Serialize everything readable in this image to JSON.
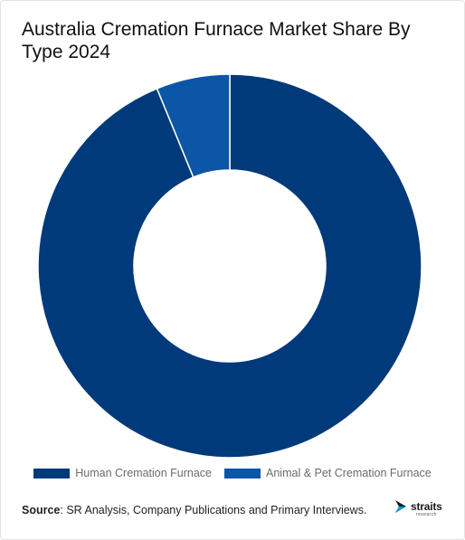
{
  "title": "Australia Cremation Furnace Market Share By Type 2024",
  "source_label": "Source",
  "source_text": ": SR Analysis, Company Publications and Primary Interviews.",
  "logo": {
    "word": "straits",
    "sub": "research",
    "icon": "straits-arrow-icon"
  },
  "colors": {
    "human": "#003a7a",
    "animal": "#0b56a6",
    "separator": "#ffffff"
  },
  "chart_data": {
    "type": "pie",
    "variant": "donut",
    "title": "Australia Cremation Furnace Market Share By Type 2024",
    "categories": [
      "Human Cremation Furnace",
      "Animal & Pet Cremation Furnace"
    ],
    "values": [
      93.8,
      6.2
    ],
    "legend_placement": "bottom"
  }
}
